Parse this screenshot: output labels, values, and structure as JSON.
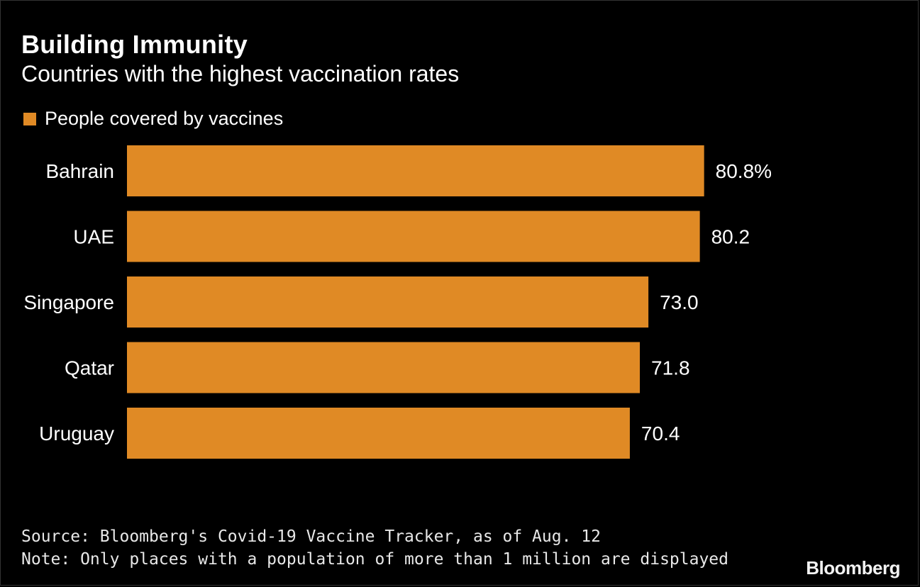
{
  "chart_data": {
    "type": "bar",
    "orientation": "horizontal",
    "title": "Building Immunity",
    "subtitle": "Countries with the highest vaccination rates",
    "legend": [
      {
        "name": "People covered by vaccines",
        "color": "#e08a25"
      }
    ],
    "categories": [
      "Bahrain",
      "UAE",
      "Singapore",
      "Qatar",
      "Uruguay"
    ],
    "series": [
      {
        "name": "People covered by vaccines",
        "values": [
          80.8,
          80.2,
          73.0,
          71.8,
          70.4
        ]
      }
    ],
    "value_labels": [
      "80.8%",
      "80.2",
      "73.0",
      "71.8",
      "70.4"
    ],
    "xlim": [
      0,
      100
    ],
    "grid": false,
    "legend_position": "top-left"
  },
  "footer": {
    "source": "Source: Bloomberg's Covid-19 Vaccine Tracker, as of Aug. 12",
    "note": "Note: Only places with a population of more than 1 million are displayed",
    "logo": "Bloomberg"
  },
  "colors": {
    "bar": "#e08a25",
    "background": "#000000",
    "text": "#ffffff"
  }
}
